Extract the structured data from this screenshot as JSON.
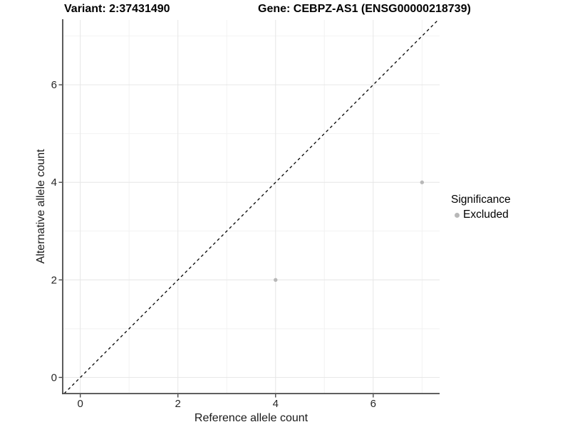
{
  "figure": {
    "background": "#ffffff",
    "title_left": "Variant: 2:37431490",
    "title_right": "Gene: CEBPZ-AS1 (ENSG00000218739)"
  },
  "chart_data": {
    "type": "scatter",
    "title": "Variant: 2:37431490  /  Gene: CEBPZ-AS1 (ENSG00000218739)",
    "xlabel": "Reference allele count",
    "ylabel": "Alternative allele count",
    "xlim": [
      -0.36,
      7.36
    ],
    "ylim": [
      -0.33,
      7.33
    ],
    "x_major_ticks": [
      0,
      2,
      4,
      6
    ],
    "y_major_ticks": [
      0,
      2,
      4,
      6
    ],
    "x_minor_gridlines": [
      1,
      3,
      5,
      7
    ],
    "y_minor_gridlines": [
      1,
      3,
      5,
      7
    ],
    "grid": "major+minor",
    "identity_line": {
      "slope": 1,
      "intercept": 0,
      "linetype": "dashed",
      "color": "#000000"
    },
    "series": [
      {
        "name": "Excluded",
        "color": "#b8b8b8",
        "marker": "circle",
        "points": [
          {
            "x": 4,
            "y": 2
          },
          {
            "x": 7,
            "y": 4
          }
        ]
      }
    ],
    "legend": {
      "title": "Significance",
      "position": "right",
      "items": [
        {
          "label": "Excluded",
          "color": "#b8b8b8"
        }
      ]
    }
  },
  "style": {
    "axis_line_color": "#4a4a4a",
    "tick_color": "#4a4a4a",
    "tick_label_color": "#262626",
    "major_grid_color": "#e6e6e6",
    "minor_grid_color": "#f2f2f2"
  }
}
